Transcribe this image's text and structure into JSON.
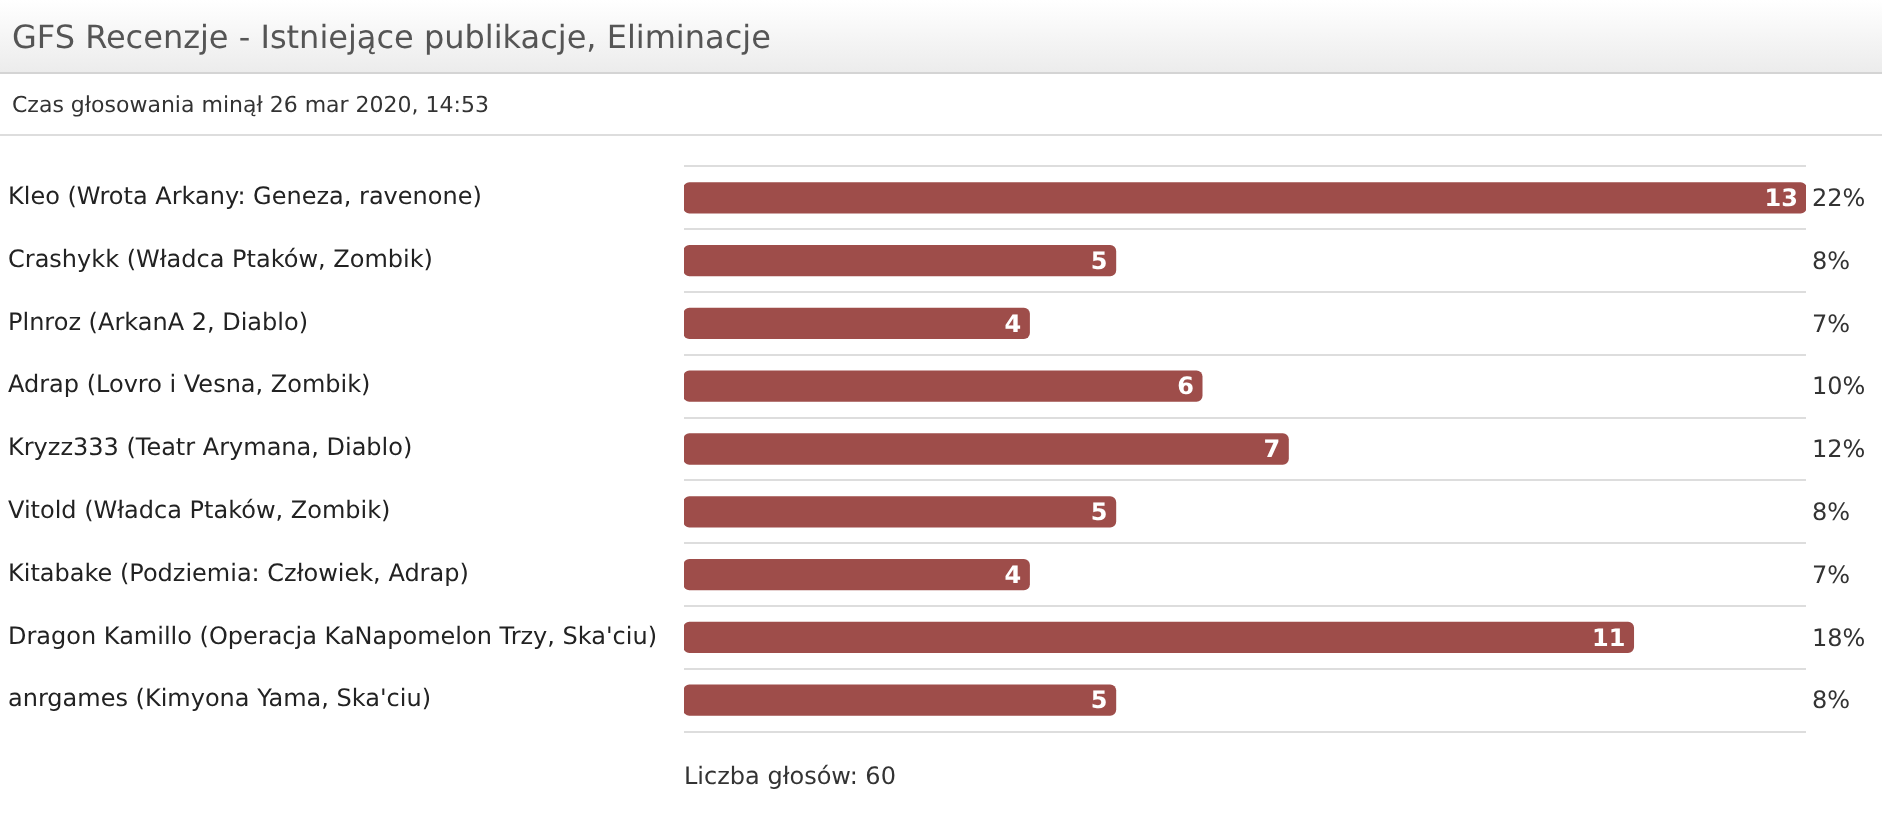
{
  "chart_data": {
    "type": "bar",
    "orientation": "horizontal",
    "title": "GFS Recenzje - Istniejące publikacje, Eliminacje",
    "subtitle": "Czas głosowania minął 26 mar 2020, 14:53",
    "categories": [
      "Kleo (Wrota Arkany: Geneza, ravenone)",
      "Crashykk (Władca Ptaków, Zombik)",
      "Plnroz (ArkanA 2, Diablo)",
      "Adrap (Lovro i Vesna, Zombik)",
      "Kryzz333 (Teatr Arymana, Diablo)",
      "Vitold (Władca Ptaków, Zombik)",
      "Kitabake (Podziemia: Człowiek, Adrap)",
      "Dragon Kamillo (Operacja KaNapomelon Trzy, Ska'ciu)",
      "anrgames (Kimyona Yama, Ska'ciu)"
    ],
    "values": [
      13,
      5,
      4,
      6,
      7,
      5,
      4,
      11,
      5
    ],
    "color": "#9e4d4a",
    "data_labels": true,
    "tick_labels": "y",
    "grid": "y",
    "annotations": [
      "22%",
      "8%",
      "7%",
      "10%",
      "12%",
      "8%",
      "7%",
      "18%",
      "8%",
      "Liczba głosów: 60"
    ]
  }
}
